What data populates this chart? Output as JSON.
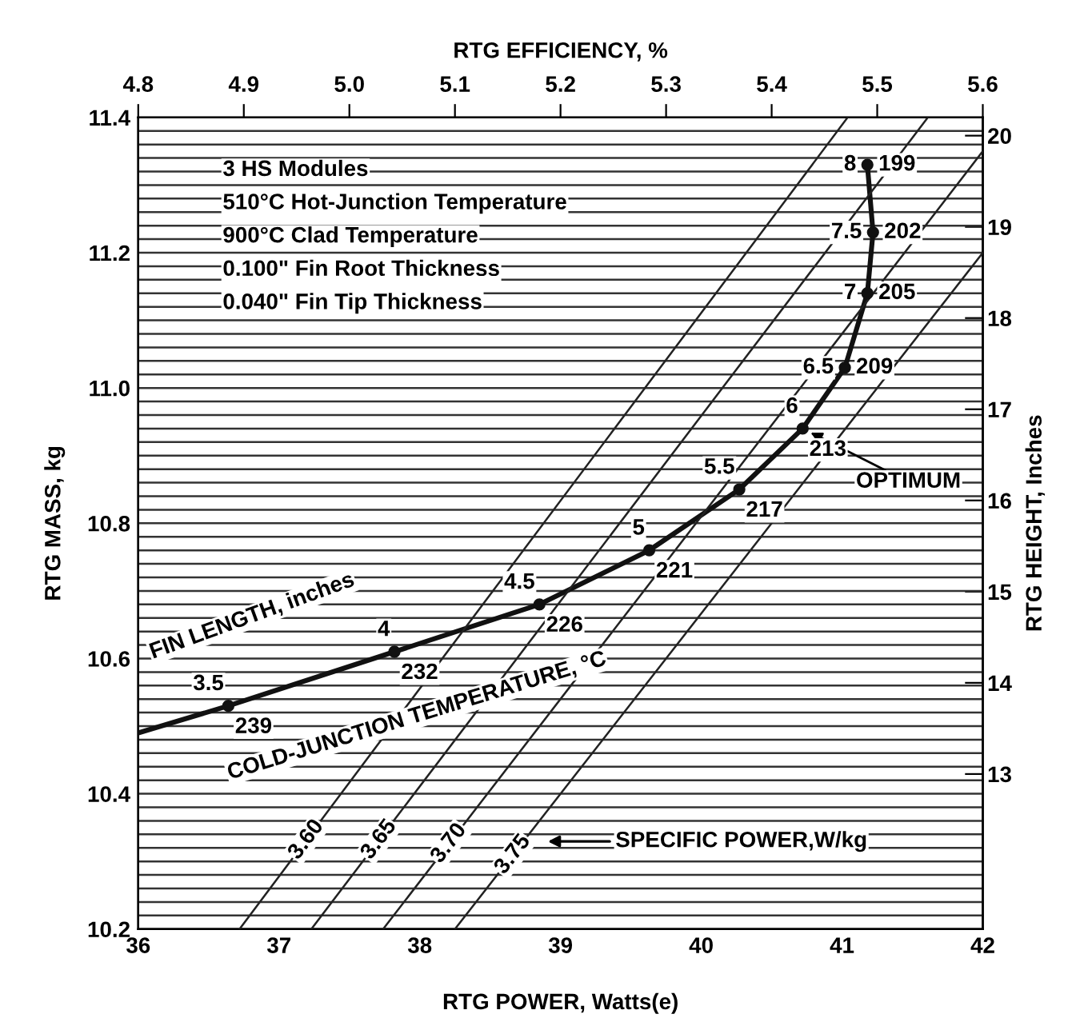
{
  "chart_data": {
    "type": "line",
    "xlabel": "RTG POWER, Watts(e)",
    "ylabel": "RTG MASS, kg",
    "y2label": "RTG HEIGHT, Inches",
    "x2label": "RTG EFFICIENCY, %",
    "xlim": [
      36,
      42
    ],
    "xticks": [
      36,
      37,
      38,
      39,
      40,
      41,
      42
    ],
    "ylim": [
      10.2,
      11.4
    ],
    "yticks": [
      {
        "value": 10.2,
        "label": "10.2"
      },
      {
        "value": 10.22,
        "label": null
      },
      {
        "value": 10.24,
        "label": null
      },
      {
        "value": 10.26,
        "label": null
      },
      {
        "value": 10.28,
        "label": null
      },
      {
        "value": 10.3,
        "label": null
      },
      {
        "value": 10.32,
        "label": null
      },
      {
        "value": 10.34,
        "label": null
      },
      {
        "value": 10.36,
        "label": null
      },
      {
        "value": 10.38,
        "label": null
      },
      {
        "value": 10.4,
        "label": "10.4"
      },
      {
        "value": 10.42,
        "label": null
      },
      {
        "value": 10.44,
        "label": null
      },
      {
        "value": 10.46,
        "label": null
      },
      {
        "value": 10.48,
        "label": null
      },
      {
        "value": 10.5,
        "label": null
      },
      {
        "value": 10.52,
        "label": null
      },
      {
        "value": 10.54,
        "label": null
      },
      {
        "value": 10.56,
        "label": null
      },
      {
        "value": 10.58,
        "label": null
      },
      {
        "value": 10.6,
        "label": "10.6"
      },
      {
        "value": 10.62,
        "label": null
      },
      {
        "value": 10.64,
        "label": null
      },
      {
        "value": 10.66,
        "label": null
      },
      {
        "value": 10.68,
        "label": null
      },
      {
        "value": 10.7,
        "label": null
      },
      {
        "value": 10.72,
        "label": null
      },
      {
        "value": 10.74,
        "label": null
      },
      {
        "value": 10.76,
        "label": null
      },
      {
        "value": 10.78,
        "label": null
      },
      {
        "value": 10.8,
        "label": "10.8"
      },
      {
        "value": 10.82,
        "label": null
      },
      {
        "value": 10.84,
        "label": null
      },
      {
        "value": 10.86,
        "label": null
      },
      {
        "value": 10.88,
        "label": null
      },
      {
        "value": 10.9,
        "label": null
      },
      {
        "value": 10.92,
        "label": null
      },
      {
        "value": 10.94,
        "label": null
      },
      {
        "value": 10.96,
        "label": null
      },
      {
        "value": 10.98,
        "label": null
      },
      {
        "value": 11.0,
        "label": "11.0"
      },
      {
        "value": 11.02,
        "label": null
      },
      {
        "value": 11.04,
        "label": null
      },
      {
        "value": 11.06,
        "label": null
      },
      {
        "value": 11.08,
        "label": null
      },
      {
        "value": 11.1,
        "label": null
      },
      {
        "value": 11.12,
        "label": null
      },
      {
        "value": 11.14,
        "label": null
      },
      {
        "value": 11.16,
        "label": null
      },
      {
        "value": 11.18,
        "label": null
      },
      {
        "value": 11.2,
        "label": "11.2"
      },
      {
        "value": 11.22,
        "label": null
      },
      {
        "value": 11.24,
        "label": null
      },
      {
        "value": 11.26,
        "label": null
      },
      {
        "value": 11.28,
        "label": null
      },
      {
        "value": 11.3,
        "label": null
      },
      {
        "value": 11.32,
        "label": null
      },
      {
        "value": 11.34,
        "label": null
      },
      {
        "value": 11.36,
        "label": null
      },
      {
        "value": 11.38,
        "label": null
      },
      {
        "value": 11.4,
        "label": "11.4"
      }
    ],
    "x2lim": [
      4.8,
      5.6
    ],
    "x2ticks": [
      {
        "value": 4.8,
        "label": "4.8"
      },
      {
        "value": 4.9,
        "label": "4.9"
      },
      {
        "value": 5.0,
        "label": "5.0"
      },
      {
        "value": 5.1,
        "label": "5.1"
      },
      {
        "value": 5.2,
        "label": "5.2"
      },
      {
        "value": 5.3,
        "label": "5.3"
      },
      {
        "value": 5.4,
        "label": "5.4"
      },
      {
        "value": 5.5,
        "label": "5.5"
      },
      {
        "value": 5.6,
        "label": "5.6"
      }
    ],
    "y2lim": [
      11.3,
      20.2
    ],
    "y2ticks": [
      13,
      14,
      15,
      16,
      17,
      18,
      19,
      20
    ],
    "grid": "y",
    "legend": false,
    "series": [
      {
        "color": "#111111",
        "marker": "circle",
        "x": [
          36,
          36.64,
          37.82,
          38.85,
          39.63,
          40.27,
          40.72,
          41.02,
          41.18,
          41.22,
          41.18
        ],
        "values": [
          10.49,
          10.53,
          10.61,
          10.68,
          10.76,
          10.85,
          10.94,
          11.03,
          11.14,
          11.23,
          11.33
        ]
      },
      {
        "name": "3.60",
        "color": "#222222",
        "x": [
          36.72,
          41.04
        ],
        "values": [
          10.2,
          11.4
        ]
      },
      {
        "name": "3.65",
        "color": "#222222",
        "x": [
          37.23,
          41.61
        ],
        "values": [
          10.2,
          11.4
        ]
      },
      {
        "name": "3.70",
        "color": "#222222",
        "x": [
          37.74,
          42
        ],
        "values": [
          10.2,
          11.35
        ]
      },
      {
        "name": "3.75",
        "color": "#222222",
        "x": [
          38.25,
          42
        ],
        "values": [
          10.2,
          11.2
        ]
      }
    ],
    "annotations": [
      "3 HS Modules",
      "510°C Hot-Junction Temperature",
      "900°C Clad Temperature",
      "0.100\" Fin Root Thickness",
      "0.040\" Fin Tip Thickness",
      "FIN LENGTH, inches",
      "COLD-JUNCTION TEMPERATURE, °C",
      "SPECIFIC POWER,W/kg",
      {
        "text": "OPTIMUM",
        "x": 40.72,
        "y": 10.94
      },
      {
        "text": "3.5",
        "x": 36.64,
        "y": 10.53
      },
      {
        "text": "4",
        "x": 37.82,
        "y": 10.61
      },
      {
        "text": "4.5",
        "x": 38.85,
        "y": 10.68
      },
      {
        "text": "5",
        "x": 39.63,
        "y": 10.76
      },
      {
        "text": "5.5",
        "x": 40.27,
        "y": 10.85
      },
      {
        "text": "6",
        "x": 40.72,
        "y": 10.94
      },
      {
        "text": "6.5",
        "x": 41.02,
        "y": 11.03
      },
      {
        "text": "7",
        "x": 41.18,
        "y": 11.14
      },
      {
        "text": "7.5",
        "x": 41.22,
        "y": 11.23
      },
      {
        "text": "8",
        "x": 41.18,
        "y": 11.33
      },
      {
        "text": "239",
        "x": 36.64,
        "y": 10.53
      },
      {
        "text": "232",
        "x": 37.82,
        "y": 10.61
      },
      {
        "text": "226",
        "x": 38.85,
        "y": 10.68
      },
      {
        "text": "221",
        "x": 39.63,
        "y": 10.76
      },
      {
        "text": "217",
        "x": 40.27,
        "y": 10.85
      },
      {
        "text": "213",
        "x": 40.72,
        "y": 10.94
      },
      {
        "text": "209",
        "x": 41.02,
        "y": 11.03
      },
      {
        "text": "205",
        "x": 41.18,
        "y": 11.14
      },
      {
        "text": "202",
        "x": 41.22,
        "y": 11.23
      },
      {
        "text": "199",
        "x": 41.18,
        "y": 11.33
      }
    ]
  }
}
